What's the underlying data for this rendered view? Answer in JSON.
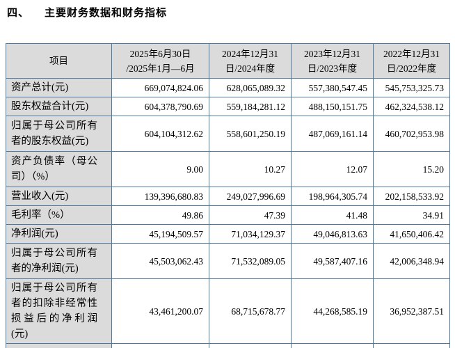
{
  "title": {
    "number": "四、",
    "text": "主要财务数据和财务指标"
  },
  "colors": {
    "border": "#4d78a0",
    "shade": "#dbdbdb",
    "text": "#000000",
    "page_bg": "#ffffff"
  },
  "table": {
    "columns": [
      "项目",
      "2025年6月30日\n/2025年1月—6月",
      "2024年12月31\n日/2024年度",
      "2023年12月31\n日/2023年度",
      "2022年12月31\n日/2022年度"
    ],
    "rows": [
      {
        "label": "资产总计(元)",
        "values": [
          "669,074,824.06",
          "628,065,089.32",
          "557,380,547.45",
          "545,753,325.73"
        ]
      },
      {
        "label": "股东权益合计(元)",
        "values": [
          "604,378,790.69",
          "559,184,281.12",
          "488,150,151.75",
          "462,324,538.12"
        ]
      },
      {
        "label": "归属于母公司所有者的股东权益(元)",
        "values": [
          "604,104,312.62",
          "558,601,250.19",
          "487,069,161.14",
          "460,702,953.98"
        ]
      },
      {
        "label": "资产负债率（母公司）（%）",
        "values": [
          "9.00",
          "10.27",
          "12.07",
          "15.20"
        ]
      },
      {
        "label": "营业收入(元)",
        "values": [
          "139,396,680.83",
          "249,027,996.69",
          "198,964,305.74",
          "202,158,533.92"
        ]
      },
      {
        "label": "毛利率（%）",
        "values": [
          "49.86",
          "47.39",
          "41.48",
          "34.91"
        ]
      },
      {
        "label": "净利润(元)",
        "values": [
          "45,194,509.57",
          "71,034,129.37",
          "49,046,813.63",
          "41,650,406.42"
        ]
      },
      {
        "label": "归属于母公司所有者的净利润(元)",
        "values": [
          "45,503,062.43",
          "71,532,089.05",
          "49,587,407.16",
          "42,006,348.94"
        ]
      },
      {
        "label": "归属于母公司所有者的扣除非经常性损益后的净利润(元)",
        "values": [
          "43,461,200.07",
          "68,715,678.77",
          "44,268,585.19",
          "36,952,387.51"
        ]
      }
    ],
    "partial_next_row_visible": true
  }
}
